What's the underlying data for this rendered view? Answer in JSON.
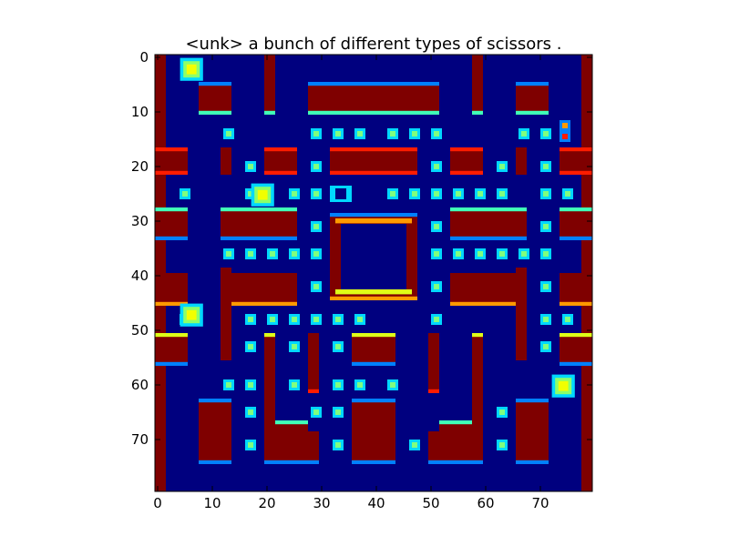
{
  "figure": {
    "title": "<unk> a bunch of different types of scissors ."
  },
  "axes": {
    "x_ticks": [
      "0",
      "10",
      "20",
      "30",
      "40",
      "50",
      "60",
      "70"
    ],
    "y_ticks": [
      "0",
      "10",
      "20",
      "30",
      "40",
      "50",
      "60",
      "70"
    ],
    "xlim": [
      0,
      80
    ],
    "ylim": [
      80,
      0
    ]
  },
  "colors": {
    "background": "#00007f",
    "wall": "#7f0000",
    "wall_edge_top": "#0080ff",
    "wall_edge_cyan": "#40ffb7",
    "wall_edge_red": "#ff1c00",
    "wall_edge_orange": "#ff9a00",
    "wall_edge_yellow": "#dfff17",
    "pellet": "#7fff7f",
    "pellet_glow": "#00d8ff",
    "sprite_yellow": "#f2ff00",
    "sprite_green": "#8cff6a"
  }
}
